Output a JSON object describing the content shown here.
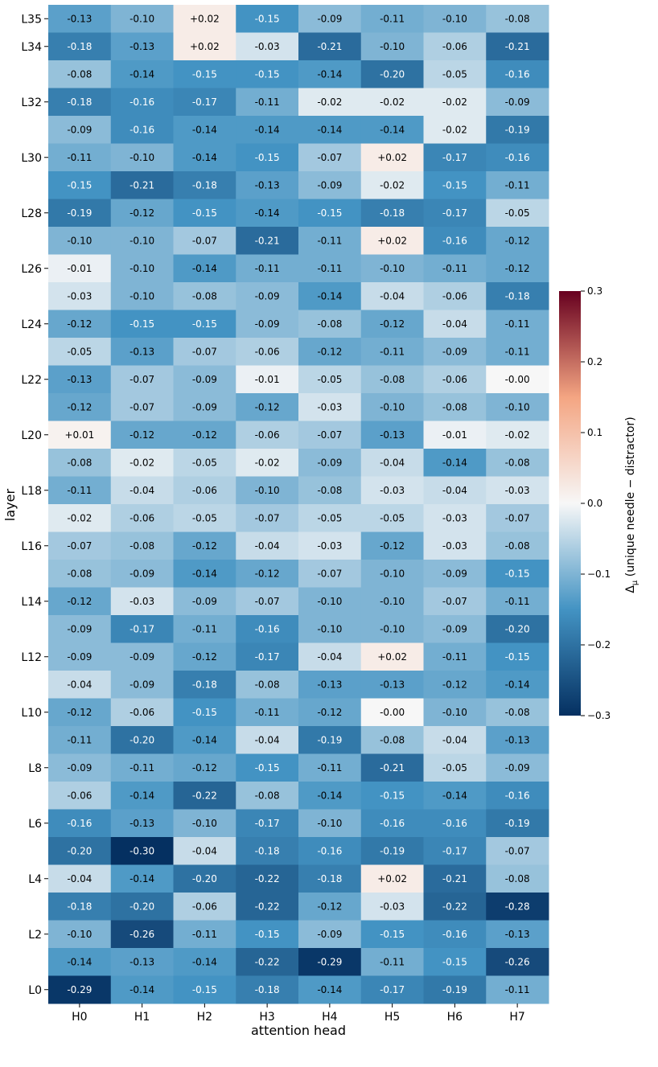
{
  "chart_data": {
    "type": "heatmap",
    "xlabel": "attention head",
    "ylabel": "layer",
    "x_categories": [
      "H0",
      "H1",
      "H2",
      "H3",
      "H4",
      "H5",
      "H6",
      "H7"
    ],
    "y_categories": [
      "L35",
      "L34",
      "L33",
      "L32",
      "L31",
      "L30",
      "L29",
      "L28",
      "L27",
      "L26",
      "L25",
      "L24",
      "L23",
      "L22",
      "L21",
      "L20",
      "L19",
      "L18",
      "L17",
      "L16",
      "L15",
      "L14",
      "L13",
      "L12",
      "L11",
      "L10",
      "L9",
      "L8",
      "L7",
      "L6",
      "L5",
      "L4",
      "L3",
      "L2",
      "L1",
      "L0"
    ],
    "y_tick_labels": [
      "L35",
      "L34",
      "",
      "L32",
      "",
      "L30",
      "",
      "L28",
      "",
      "L26",
      "",
      "L24",
      "",
      "L22",
      "",
      "L20",
      "",
      "L18",
      "",
      "L16",
      "",
      "L14",
      "",
      "L12",
      "",
      "L10",
      "",
      "L8",
      "",
      "L6",
      "",
      "L4",
      "",
      "L2",
      "",
      "L0"
    ],
    "cell_labels": [
      [
        "-0.13",
        "-0.10",
        "+0.02",
        "-0.15",
        "-0.09",
        "-0.11",
        "-0.10",
        "-0.08"
      ],
      [
        "-0.18",
        "-0.13",
        "+0.02",
        "-0.03",
        "-0.21",
        "-0.10",
        "-0.06",
        "-0.21"
      ],
      [
        "-0.08",
        "-0.14",
        "-0.15",
        "-0.15",
        "-0.14",
        "-0.20",
        "-0.05",
        "-0.16"
      ],
      [
        "-0.18",
        "-0.16",
        "-0.17",
        "-0.11",
        "-0.02",
        "-0.02",
        "-0.02",
        "-0.09"
      ],
      [
        "-0.09",
        "-0.16",
        "-0.14",
        "-0.14",
        "-0.14",
        "-0.14",
        "-0.02",
        "-0.19"
      ],
      [
        "-0.11",
        "-0.10",
        "-0.14",
        "-0.15",
        "-0.07",
        "+0.02",
        "-0.17",
        "-0.16"
      ],
      [
        "-0.15",
        "-0.21",
        "-0.18",
        "-0.13",
        "-0.09",
        "-0.02",
        "-0.15",
        "-0.11"
      ],
      [
        "-0.19",
        "-0.12",
        "-0.15",
        "-0.14",
        "-0.15",
        "-0.18",
        "-0.17",
        "-0.05"
      ],
      [
        "-0.10",
        "-0.10",
        "-0.07",
        "-0.21",
        "-0.11",
        "+0.02",
        "-0.16",
        "-0.12"
      ],
      [
        "-0.01",
        "-0.10",
        "-0.14",
        "-0.11",
        "-0.11",
        "-0.10",
        "-0.11",
        "-0.12"
      ],
      [
        "-0.03",
        "-0.10",
        "-0.08",
        "-0.09",
        "-0.14",
        "-0.04",
        "-0.06",
        "-0.18"
      ],
      [
        "-0.12",
        "-0.15",
        "-0.15",
        "-0.09",
        "-0.08",
        "-0.12",
        "-0.04",
        "-0.11"
      ],
      [
        "-0.05",
        "-0.13",
        "-0.07",
        "-0.06",
        "-0.12",
        "-0.11",
        "-0.09",
        "-0.11"
      ],
      [
        "-0.13",
        "-0.07",
        "-0.09",
        "-0.01",
        "-0.05",
        "-0.08",
        "-0.06",
        "-0.00"
      ],
      [
        "-0.12",
        "-0.07",
        "-0.09",
        "-0.12",
        "-0.03",
        "-0.10",
        "-0.08",
        "-0.10"
      ],
      [
        "+0.01",
        "-0.12",
        "-0.12",
        "-0.06",
        "-0.07",
        "-0.13",
        "-0.01",
        "-0.02"
      ],
      [
        "-0.08",
        "-0.02",
        "-0.05",
        "-0.02",
        "-0.09",
        "-0.04",
        "-0.14",
        "-0.08"
      ],
      [
        "-0.11",
        "-0.04",
        "-0.06",
        "-0.10",
        "-0.08",
        "-0.03",
        "-0.04",
        "-0.03"
      ],
      [
        "-0.02",
        "-0.06",
        "-0.05",
        "-0.07",
        "-0.05",
        "-0.05",
        "-0.03",
        "-0.07"
      ],
      [
        "-0.07",
        "-0.08",
        "-0.12",
        "-0.04",
        "-0.03",
        "-0.12",
        "-0.03",
        "-0.08"
      ],
      [
        "-0.08",
        "-0.09",
        "-0.14",
        "-0.12",
        "-0.07",
        "-0.10",
        "-0.09",
        "-0.15"
      ],
      [
        "-0.12",
        "-0.03",
        "-0.09",
        "-0.07",
        "-0.10",
        "-0.10",
        "-0.07",
        "-0.11"
      ],
      [
        "-0.09",
        "-0.17",
        "-0.11",
        "-0.16",
        "-0.10",
        "-0.10",
        "-0.09",
        "-0.20"
      ],
      [
        "-0.09",
        "-0.09",
        "-0.12",
        "-0.17",
        "-0.04",
        "+0.02",
        "-0.11",
        "-0.15"
      ],
      [
        "-0.04",
        "-0.09",
        "-0.18",
        "-0.08",
        "-0.13",
        "-0.13",
        "-0.12",
        "-0.14"
      ],
      [
        "-0.12",
        "-0.06",
        "-0.15",
        "-0.11",
        "-0.12",
        "-0.00",
        "-0.10",
        "-0.08"
      ],
      [
        "-0.11",
        "-0.20",
        "-0.14",
        "-0.04",
        "-0.19",
        "-0.08",
        "-0.04",
        "-0.13"
      ],
      [
        "-0.09",
        "-0.11",
        "-0.12",
        "-0.15",
        "-0.11",
        "-0.21",
        "-0.05",
        "-0.09"
      ],
      [
        "-0.06",
        "-0.14",
        "-0.22",
        "-0.08",
        "-0.14",
        "-0.15",
        "-0.14",
        "-0.16"
      ],
      [
        "-0.16",
        "-0.13",
        "-0.10",
        "-0.17",
        "-0.10",
        "-0.16",
        "-0.16",
        "-0.19"
      ],
      [
        "-0.20",
        "-0.30",
        "-0.04",
        "-0.18",
        "-0.16",
        "-0.19",
        "-0.17",
        "-0.07"
      ],
      [
        "-0.04",
        "-0.14",
        "-0.20",
        "-0.22",
        "-0.18",
        "+0.02",
        "-0.21",
        "-0.08"
      ],
      [
        "-0.18",
        "-0.20",
        "-0.06",
        "-0.22",
        "-0.12",
        "-0.03",
        "-0.22",
        "-0.28"
      ],
      [
        "-0.10",
        "-0.26",
        "-0.11",
        "-0.15",
        "-0.09",
        "-0.15",
        "-0.16",
        "-0.13"
      ],
      [
        "-0.14",
        "-0.13",
        "-0.14",
        "-0.22",
        "-0.29",
        "-0.11",
        "-0.15",
        "-0.26"
      ],
      [
        "-0.29",
        "-0.14",
        "-0.15",
        "-0.18",
        "-0.14",
        "-0.17",
        "-0.19",
        "-0.11"
      ]
    ],
    "colorbar": {
      "label_prefix": "Δ",
      "label_subscript": "μ",
      "label_suffix": " (unique needle − distractor)",
      "range": [
        -0.3,
        0.3
      ],
      "ticks": [
        0.3,
        0.2,
        0.1,
        0.0,
        -0.1,
        -0.2,
        -0.3
      ],
      "tick_labels": [
        "0.3",
        "0.2",
        "0.1",
        "0.0",
        "−0.1",
        "−0.2",
        "−0.3"
      ],
      "colormap": "RdBu_r"
    },
    "colors": {
      "neg_max": "#053061",
      "neg_mid": "#4393c3",
      "neutral": "#f7f7f7",
      "pos_mid": "#f4a582",
      "pos_max": "#67001f"
    }
  }
}
